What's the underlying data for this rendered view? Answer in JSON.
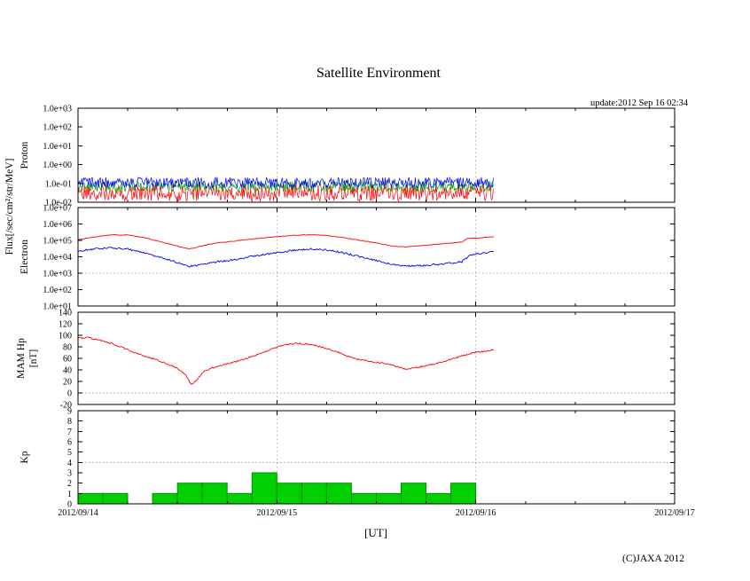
{
  "page": {
    "title": "Satellite Environment",
    "update_label": "update:2012 Sep 16 02:34",
    "x_axis_label": "[UT]",
    "copyright": "(C)JAXA 2012",
    "flux_axis_label": "Flux[/sec/cm²/str/MeV]"
  },
  "x_ticks": [
    "2012/09/14",
    "2012/09/15",
    "2012/09/16",
    "2012/09/17"
  ],
  "chart_data": [
    {
      "type": "line",
      "name": "proton-flux",
      "ylabel": "Proton",
      "yscale": "log",
      "ylim": [
        0.01,
        1000
      ],
      "ytick_values": [
        1000,
        100,
        10,
        1,
        0.1,
        0.01
      ],
      "ytick_labels": [
        "1.0e+03",
        "1.0e+02",
        "1.0e+01",
        "1.0e+00",
        "1.0e-01",
        "1.0e-02"
      ],
      "x_range_days": [
        0,
        3
      ],
      "data_end_day": 2.09,
      "series": [
        {
          "name": "proton-channel-red",
          "color": "#ff0000",
          "style": "noise",
          "base_log10": -1.5,
          "noise_log10": 0.45
        },
        {
          "name": "proton-channel-green",
          "color": "#00a000",
          "style": "noise",
          "base_log10": -1.15,
          "noise_log10": 0.3
        },
        {
          "name": "proton-channel-blue",
          "color": "#0000ff",
          "style": "noise",
          "base_log10": -0.95,
          "noise_log10": 0.28
        }
      ]
    },
    {
      "type": "line",
      "name": "electron-flux",
      "ylabel": "Electron",
      "yscale": "log",
      "ylim": [
        10,
        10000000
      ],
      "ytick_values": [
        10000000,
        1000000,
        100000,
        10000,
        1000,
        100,
        10
      ],
      "ytick_labels": [
        "1.0e+07",
        "1.0e+06",
        "1.0e+05",
        "1.0e+04",
        "1.0e+03",
        "1.0e+02",
        "1.0e+01"
      ],
      "threshold": 1000,
      "x_range_days": [
        0,
        3
      ],
      "data_end_day": 2.09,
      "series": [
        {
          "name": "electron-high-flux",
          "color": "#ff0000",
          "style": "keypoints",
          "noise_log10": 0.02,
          "days": [
            0,
            0.08,
            0.17,
            0.25,
            0.33,
            0.42,
            0.5,
            0.56,
            0.62,
            0.7,
            0.8,
            0.9,
            1.0,
            1.08,
            1.17,
            1.25,
            1.33,
            1.42,
            1.5,
            1.58,
            1.65,
            1.75,
            1.85,
            1.93,
            1.96,
            2.02,
            2.09
          ],
          "values": [
            110000,
            160000,
            220000,
            210000,
            150000,
            80000,
            45000,
            30000,
            45000,
            70000,
            95000,
            130000,
            170000,
            200000,
            220000,
            200000,
            150000,
            100000,
            70000,
            45000,
            40000,
            50000,
            65000,
            80000,
            130000,
            145000,
            170000
          ]
        },
        {
          "name": "electron-low-flux",
          "color": "#0000ff",
          "style": "keypoints",
          "noise_log10": 0.055,
          "days": [
            0,
            0.08,
            0.17,
            0.25,
            0.33,
            0.42,
            0.5,
            0.56,
            0.62,
            0.7,
            0.8,
            0.9,
            1.0,
            1.08,
            1.17,
            1.25,
            1.33,
            1.42,
            1.5,
            1.58,
            1.65,
            1.75,
            1.85,
            1.93,
            1.97,
            2.02,
            2.09
          ],
          "values": [
            22000,
            30000,
            35000,
            30000,
            18000,
            9000,
            4500,
            2600,
            3200,
            5000,
            7000,
            12000,
            18000,
            24000,
            30000,
            26000,
            18000,
            10000,
            6000,
            3500,
            2800,
            3000,
            3800,
            5000,
            13000,
            16000,
            20000
          ]
        }
      ]
    },
    {
      "type": "line",
      "name": "mam-hp",
      "ylabel": "MAM Hp",
      "ylabel2": "[nT]",
      "yscale": "linear",
      "ylim": [
        -20,
        140
      ],
      "ytick_values": [
        140,
        120,
        100,
        80,
        60,
        40,
        20,
        0,
        -20
      ],
      "ytick_labels": [
        "140",
        "120",
        "100",
        "80",
        "60",
        "40",
        "20",
        "0",
        "-20"
      ],
      "threshold": 0,
      "x_range_days": [
        0,
        3
      ],
      "data_end_day": 2.09,
      "series": [
        {
          "name": "mam-hp-trace",
          "color": "#ff0000",
          "style": "keypoints",
          "noise": 1.2,
          "days": [
            0,
            0.05,
            0.1,
            0.15,
            0.2,
            0.25,
            0.3,
            0.35,
            0.4,
            0.45,
            0.5,
            0.54,
            0.57,
            0.6,
            0.63,
            0.67,
            0.72,
            0.78,
            0.83,
            0.9,
            0.96,
            1.0,
            1.05,
            1.1,
            1.15,
            1.2,
            1.25,
            1.3,
            1.35,
            1.4,
            1.45,
            1.5,
            1.55,
            1.6,
            1.65,
            1.7,
            1.75,
            1.8,
            1.85,
            1.9,
            1.95,
            2.0,
            2.05,
            2.09
          ],
          "values": [
            95,
            96,
            92,
            88,
            82,
            75,
            68,
            62,
            57,
            50,
            43,
            32,
            14,
            24,
            36,
            43,
            48,
            53,
            58,
            66,
            74,
            80,
            84,
            86,
            85,
            82,
            77,
            72,
            64,
            59,
            56,
            53,
            51,
            46,
            41,
            44,
            47,
            51,
            56,
            61,
            66,
            71,
            72,
            75
          ]
        }
      ]
    },
    {
      "type": "bar",
      "name": "kp-index",
      "ylabel": "Kp",
      "yscale": "linear",
      "ylim": [
        0,
        9
      ],
      "ytick_values": [
        9,
        8,
        7,
        6,
        5,
        4,
        3,
        2,
        1,
        0
      ],
      "ytick_labels": [
        "9",
        "8",
        "7",
        "6",
        "5",
        "4",
        "3",
        "2",
        "1",
        "0"
      ],
      "threshold": 4,
      "bar_hours": 3,
      "color": "#00d000",
      "bar_border_color": "#009000",
      "x_range_days": [
        0,
        3
      ],
      "values": [
        1,
        1,
        0,
        1,
        2,
        2,
        1,
        3,
        2,
        2,
        2,
        1,
        1,
        2,
        1,
        2
      ]
    }
  ]
}
